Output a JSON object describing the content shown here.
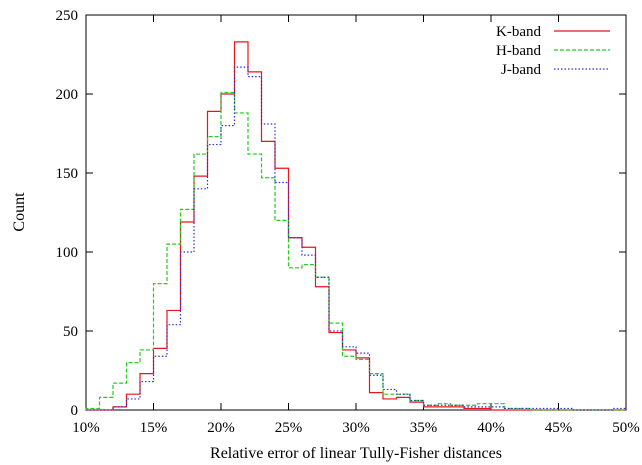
{
  "chart_data": {
    "type": "histogram",
    "xlabel": "Relative error of linear Tully-Fisher distances",
    "ylabel": "Count",
    "xlim": [
      10,
      50
    ],
    "ylim": [
      0,
      250
    ],
    "x_ticks": [
      10,
      15,
      20,
      25,
      30,
      35,
      40,
      45,
      50
    ],
    "x_tick_labels": [
      "10%",
      "15%",
      "20%",
      "25%",
      "30%",
      "35%",
      "40%",
      "45%",
      "50%"
    ],
    "y_ticks": [
      0,
      50,
      100,
      150,
      200,
      250
    ],
    "y_tick_labels": [
      "0",
      "50",
      "100",
      "150",
      "200",
      "250"
    ],
    "bin_width": 1,
    "bin_edges_start": 10,
    "legend_position": "top-right",
    "grid": false,
    "series": [
      {
        "name": "K-band",
        "color": "#e8141e",
        "dash": "solid",
        "values": [
          0,
          0,
          2,
          10,
          23,
          39,
          63,
          119,
          148,
          189,
          200,
          233,
          214,
          170,
          153,
          109,
          103,
          78,
          49,
          38,
          33,
          11,
          7,
          8,
          5,
          2,
          2,
          2,
          1,
          1,
          0,
          0,
          0,
          0,
          0,
          0,
          0,
          0,
          0,
          0
        ]
      },
      {
        "name": "H-band",
        "color": "#22cc22",
        "dash": "dashed",
        "values": [
          1,
          8,
          17,
          30,
          38,
          80,
          105,
          127,
          162,
          173,
          201,
          188,
          162,
          147,
          120,
          90,
          92,
          84,
          55,
          34,
          32,
          23,
          10,
          10,
          6,
          3,
          4,
          3,
          3,
          4,
          4,
          1,
          1,
          0,
          0,
          0,
          0,
          0,
          0,
          0
        ]
      },
      {
        "name": "J-band",
        "color": "#2f2fd0",
        "dash": "dotted",
        "values": [
          0,
          0,
          2,
          7,
          18,
          34,
          54,
          100,
          140,
          168,
          180,
          217,
          211,
          181,
          144,
          109,
          98,
          84,
          50,
          40,
          36,
          22,
          13,
          10,
          6,
          3,
          3,
          3,
          2,
          2,
          2,
          1,
          1,
          1,
          1,
          1,
          0,
          0,
          0,
          1
        ]
      }
    ]
  }
}
